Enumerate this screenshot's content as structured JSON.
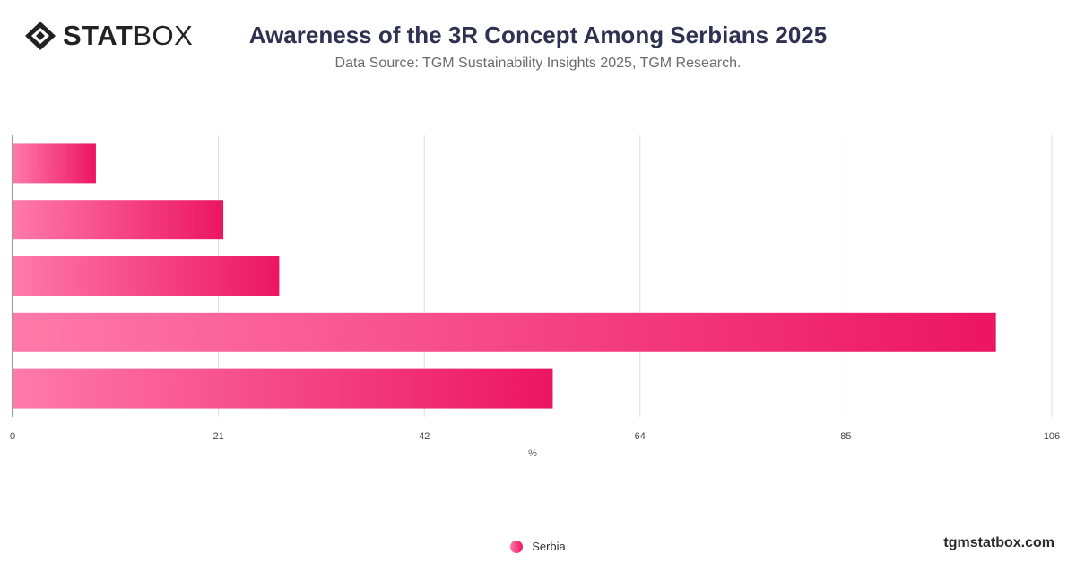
{
  "logo": {
    "bold_text": "STAT",
    "light_text": "BOX"
  },
  "header": {
    "title": "Awareness of the 3R Concept Among Serbians 2025",
    "subtitle": "Data Source: TGM Sustainability Insights 2025, TGM Research."
  },
  "chart_data": {
    "type": "bar",
    "orientation": "horizontal",
    "title": "Awareness of the 3R Concept Among Serbians 2025",
    "xlabel": "%",
    "ylabel": "",
    "xlim": [
      0,
      106
    ],
    "x_ticks": [
      0,
      21,
      42,
      64,
      85,
      106
    ],
    "grid": true,
    "legend_position": "bottom-center",
    "categories": [
      "",
      "",
      "",
      "",
      ""
    ],
    "series": [
      {
        "name": "Serbia",
        "values": [
          8.5,
          21.5,
          27.2,
          100.3,
          55.1
        ]
      }
    ],
    "bar_colors": {
      "start": "#ff7aa8",
      "end": "#ec1562"
    }
  },
  "legend": {
    "items": [
      {
        "label": "Serbia"
      }
    ]
  },
  "footer": {
    "watermark": "tgmstatbox.com"
  }
}
